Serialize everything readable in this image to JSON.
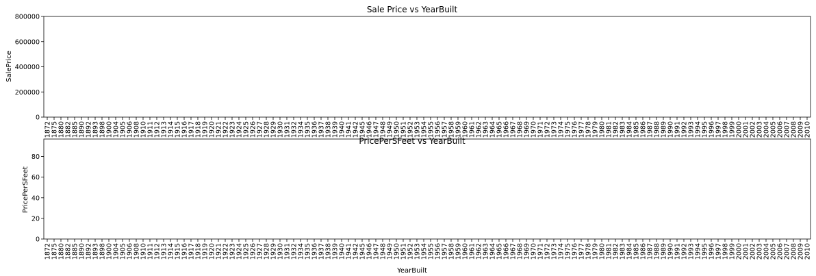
{
  "chart_data": [
    {
      "type": "box",
      "title": "Sale Price vs YearBuilt",
      "xlabel": "",
      "ylabel": "SalePrice",
      "ylim": [
        0,
        800000
      ],
      "yticks": [
        "0",
        "200000",
        "400000",
        "600000",
        "800000"
      ],
      "ytick_values": [
        0,
        200000,
        400000,
        600000,
        800000
      ],
      "xticks": [
        "1872",
        "1875",
        "1880",
        "1882",
        "1885",
        "1890",
        "1892",
        "1893",
        "1898",
        "1900",
        "1904",
        "1905",
        "1906",
        "1908",
        "1910",
        "1911",
        "1912",
        "1913",
        "1914",
        "1915",
        "1916",
        "1917",
        "1918",
        "1919",
        "1920",
        "1921",
        "1922",
        "1923",
        "1924",
        "1925",
        "1926",
        "1927",
        "1928",
        "1929",
        "1930",
        "1931",
        "1932",
        "1934",
        "1935",
        "1936",
        "1937",
        "1938",
        "1939",
        "1940",
        "1941",
        "1942",
        "1945",
        "1946",
        "1947",
        "1948",
        "1949",
        "1950",
        "1951",
        "1952",
        "1953",
        "1954",
        "1955",
        "1956",
        "1957",
        "1958",
        "1959",
        "1960",
        "1961",
        "1962",
        "1963",
        "1964",
        "1965",
        "1966",
        "1967",
        "1968",
        "1969",
        "1970",
        "1971",
        "1972",
        "1973",
        "1974",
        "1975",
        "1976",
        "1977",
        "1978",
        "1979",
        "1980",
        "1981",
        "1982",
        "1983",
        "1984",
        "1985",
        "1986",
        "1987",
        "1988",
        "1989",
        "1990",
        "1991",
        "1992",
        "1993",
        "1994",
        "1995",
        "1996",
        "1997",
        "1998",
        "1999",
        "2000",
        "2001",
        "2002",
        "2003",
        "2004",
        "2005",
        "2006",
        "2007",
        "2008",
        "2009",
        "2010"
      ]
    },
    {
      "type": "box",
      "title": "PricePerSFeet vs YearBuilt",
      "xlabel": "YearBuilt",
      "ylabel": "PricePerSFeet",
      "ylim": [
        0,
        97
      ],
      "yticks": [
        "0",
        "20",
        "40",
        "60",
        "80"
      ],
      "ytick_values": [
        0,
        20,
        40,
        60,
        80
      ],
      "xticks": [
        "1872",
        "1875",
        "1880",
        "1882",
        "1885",
        "1890",
        "1892",
        "1893",
        "1898",
        "1900",
        "1904",
        "1905",
        "1906",
        "1908",
        "1910",
        "1911",
        "1912",
        "1913",
        "1914",
        "1915",
        "1916",
        "1917",
        "1918",
        "1919",
        "1920",
        "1921",
        "1922",
        "1923",
        "1924",
        "1925",
        "1926",
        "1927",
        "1928",
        "1929",
        "1930",
        "1931",
        "1932",
        "1934",
        "1935",
        "1936",
        "1937",
        "1938",
        "1939",
        "1940",
        "1941",
        "1942",
        "1945",
        "1946",
        "1947",
        "1948",
        "1949",
        "1950",
        "1951",
        "1952",
        "1953",
        "1954",
        "1955",
        "1956",
        "1957",
        "1958",
        "1959",
        "1960",
        "1961",
        "1962",
        "1963",
        "1964",
        "1965",
        "1966",
        "1967",
        "1968",
        "1969",
        "1970",
        "1971",
        "1972",
        "1973",
        "1974",
        "1975",
        "1976",
        "1977",
        "1978",
        "1979",
        "1980",
        "1981",
        "1982",
        "1983",
        "1984",
        "1985",
        "1986",
        "1987",
        "1988",
        "1989",
        "1990",
        "1991",
        "1992",
        "1993",
        "1994",
        "1995",
        "1996",
        "1997",
        "1998",
        "1999",
        "2000",
        "2001",
        "2002",
        "2003",
        "2004",
        "2005",
        "2006",
        "2007",
        "2008",
        "2009",
        "2010"
      ]
    }
  ]
}
